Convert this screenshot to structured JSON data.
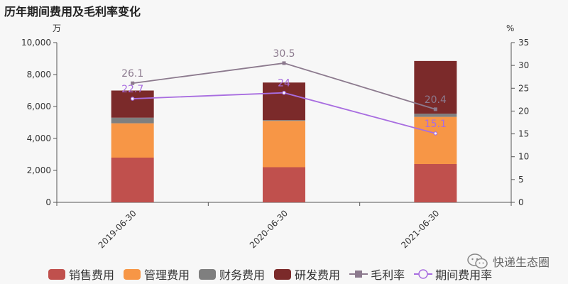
{
  "title": "历年期间费用及毛利率变化",
  "watermark": "快递生态圈",
  "chart_data": {
    "type": "bar",
    "stacked": true,
    "categories": [
      "2019-06-30",
      "2020-06-30",
      "2021-06-30"
    ],
    "y_left": {
      "unit": "万",
      "ylim": [
        0,
        10000
      ],
      "ticks": [
        "0",
        "2,000",
        "4,000",
        "6,000",
        "8,000",
        "10,000"
      ]
    },
    "y_right": {
      "unit": "%",
      "ylim": [
        0,
        35
      ],
      "ticks": [
        "0",
        "5",
        "10",
        "15",
        "20",
        "25",
        "30",
        "35"
      ]
    },
    "series": [
      {
        "name": "销售费用",
        "kind": "bar",
        "color": "#c0504d",
        "values": [
          2800,
          2200,
          2400
        ]
      },
      {
        "name": "管理费用",
        "kind": "bar",
        "color": "#f79646",
        "values": [
          2150,
          2900,
          2950
        ]
      },
      {
        "name": "财务费用",
        "kind": "bar",
        "color": "#7f7f7f",
        "values": [
          350,
          50,
          200
        ]
      },
      {
        "name": "研发费用",
        "kind": "bar",
        "color": "#7b2a2a",
        "values": [
          1700,
          2350,
          3300
        ]
      },
      {
        "name": "毛利率",
        "kind": "line",
        "axis": "right",
        "marker": "square",
        "color": "#8c7a8e",
        "values": [
          26.1,
          30.5,
          20.4
        ],
        "labels": [
          "26.1",
          "30.5",
          "20.4"
        ]
      },
      {
        "name": "期间费用率",
        "kind": "line",
        "axis": "right",
        "marker": "circle",
        "color": "#a86de0",
        "values": [
          22.7,
          24,
          15.1
        ],
        "labels": [
          "22.7",
          "24",
          "15.1"
        ]
      }
    ],
    "grid": false,
    "legend_position": "bottom"
  }
}
